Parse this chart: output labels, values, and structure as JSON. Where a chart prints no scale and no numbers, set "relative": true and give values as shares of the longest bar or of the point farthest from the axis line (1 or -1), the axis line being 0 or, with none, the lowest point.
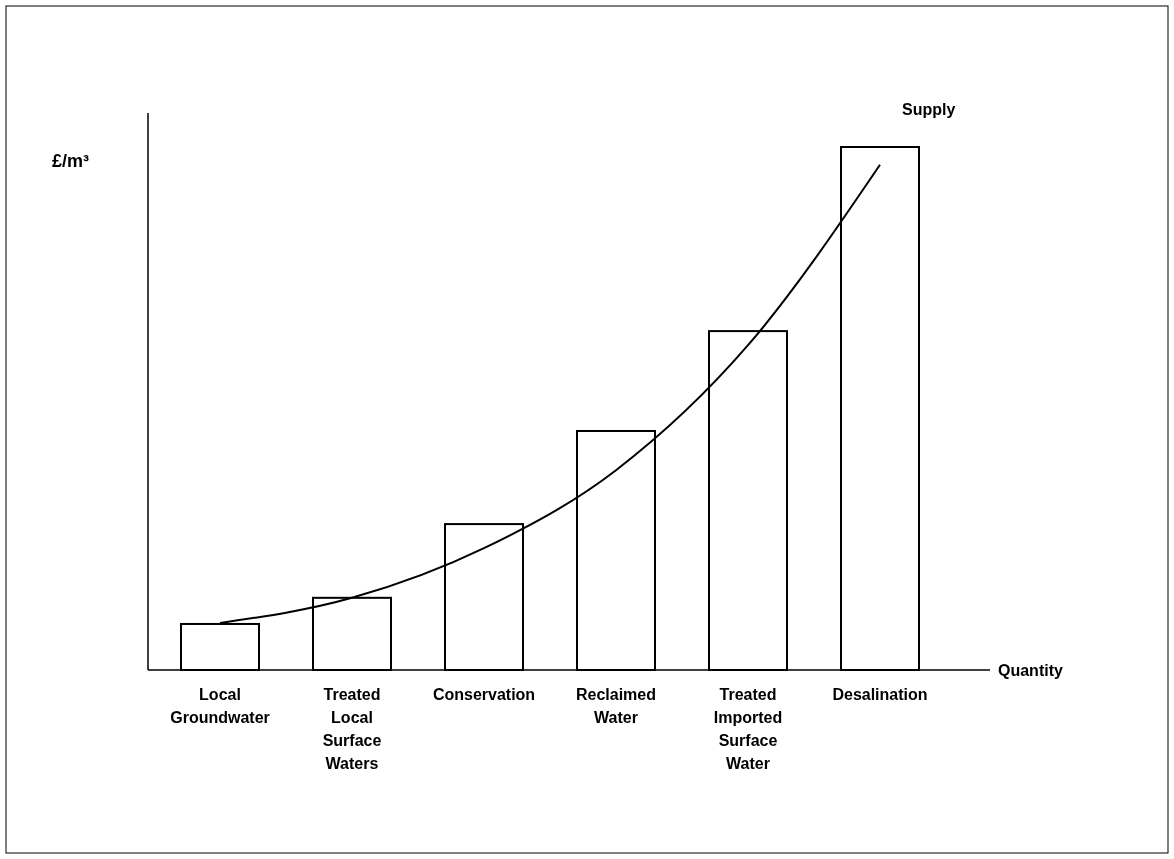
{
  "chart_data": {
    "type": "bar",
    "relative": true,
    "ylabel": "£/m³",
    "xlabel": "Quantity",
    "categories": [
      "Local Groundwater",
      "Treated Local Surface Waters",
      "Conservation",
      "Reclaimed Water",
      "Treated Imported Surface Water",
      "Desalination"
    ],
    "series": [
      {
        "color": "#ffffff",
        "values": [
          0.088,
          0.138,
          0.279,
          0.457,
          0.648,
          1
        ]
      },
      {
        "type": "line",
        "name": "Supply",
        "color": "#000000",
        "values": [
          0.09,
          0.138,
          0.233,
          0.382,
          0.621,
          0.966
        ]
      }
    ],
    "grid": false,
    "marker": "none"
  }
}
